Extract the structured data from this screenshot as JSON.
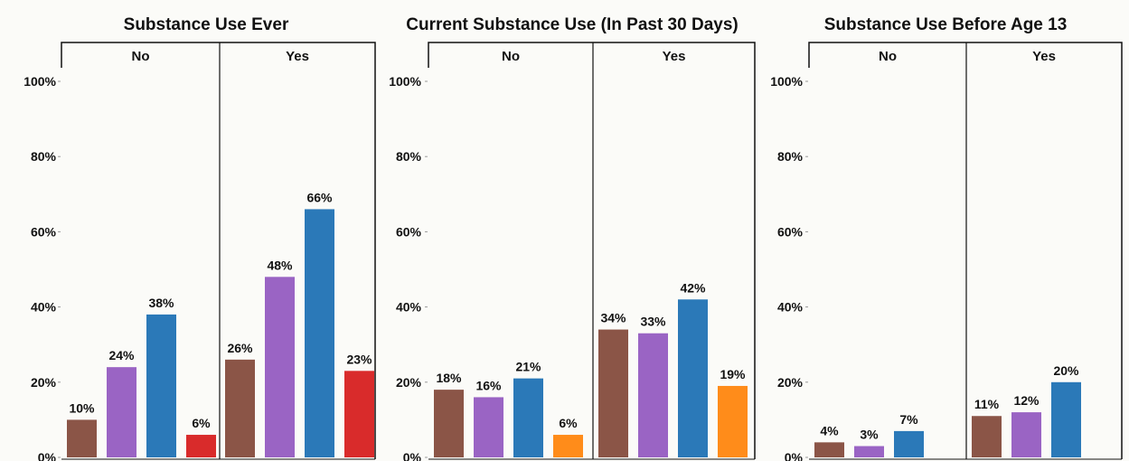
{
  "chart_data": [
    {
      "type": "bar",
      "title": "Substance Use Ever",
      "facets": [
        {
          "label": "No",
          "values": [
            10,
            24,
            38,
            6
          ],
          "labels": [
            "10%",
            "24%",
            "38%",
            "6%"
          ]
        },
        {
          "label": "Yes",
          "values": [
            26,
            48,
            66,
            23
          ],
          "labels": [
            "26%",
            "48%",
            "66%",
            "23%"
          ]
        }
      ],
      "colors": [
        "#8b5547",
        "#9a64c4",
        "#2b79b8",
        "#d92b2b"
      ],
      "yticks": [
        "0%",
        "20%",
        "40%",
        "60%",
        "80%",
        "100%"
      ],
      "ylim": [
        0,
        100
      ]
    },
    {
      "type": "bar",
      "title": "Current Substance Use (In Past 30 Days)",
      "facets": [
        {
          "label": "No",
          "values": [
            18,
            16,
            21,
            6
          ],
          "labels": [
            "18%",
            "16%",
            "21%",
            "6%"
          ]
        },
        {
          "label": "Yes",
          "values": [
            34,
            33,
            42,
            19
          ],
          "labels": [
            "34%",
            "33%",
            "42%",
            "19%"
          ]
        }
      ],
      "colors": [
        "#8b5547",
        "#9a64c4",
        "#2b79b8",
        "#ff8c1a"
      ],
      "yticks": [
        "0%",
        "20%",
        "40%",
        "60%",
        "80%",
        "100%"
      ],
      "ylim": [
        0,
        100
      ]
    },
    {
      "type": "bar",
      "title": "Substance Use Before Age 13",
      "facets": [
        {
          "label": "No",
          "values": [
            4,
            3,
            7
          ],
          "labels": [
            "4%",
            "3%",
            "7%"
          ]
        },
        {
          "label": "Yes",
          "values": [
            11,
            12,
            20
          ],
          "labels": [
            "11%",
            "12%",
            "20%"
          ]
        }
      ],
      "colors": [
        "#8b5547",
        "#9a64c4",
        "#2b79b8"
      ],
      "yticks": [
        "0%",
        "20%",
        "40%",
        "60%",
        "80%",
        "100%"
      ],
      "ylim": [
        0,
        100
      ]
    }
  ]
}
